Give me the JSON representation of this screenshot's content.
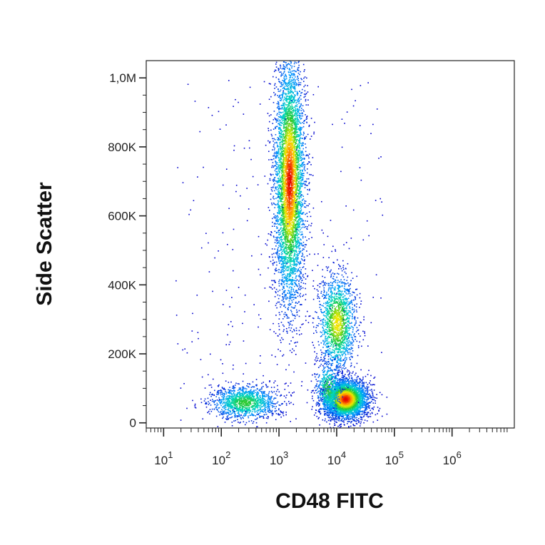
{
  "chart_data": {
    "type": "scatter",
    "title": "",
    "xlabel": "CD48 FITC",
    "ylabel": "Side Scatter",
    "x_scale": "log",
    "xlim": [
      5,
      12000000
    ],
    "ylim": [
      -15000,
      1050000
    ],
    "x_ticks": [
      {
        "value": 10,
        "base": "10",
        "exp": "1"
      },
      {
        "value": 100,
        "base": "10",
        "exp": "2"
      },
      {
        "value": 1000,
        "base": "10",
        "exp": "3"
      },
      {
        "value": 10000,
        "base": "10",
        "exp": "4"
      },
      {
        "value": 100000,
        "base": "10",
        "exp": "5"
      },
      {
        "value": 1000000,
        "base": "10",
        "exp": "6"
      }
    ],
    "y_ticks": [
      {
        "value": 0,
        "label": "0"
      },
      {
        "value": 200000,
        "label": "200K"
      },
      {
        "value": 400000,
        "label": "400K"
      },
      {
        "value": 600000,
        "label": "600K"
      },
      {
        "value": 800000,
        "label": "800K"
      },
      {
        "value": 1000000,
        "label": "1,0M"
      }
    ],
    "grid": false,
    "legend": "none",
    "color_scale": "density (blue → cyan → green → yellow → red)",
    "populations": [
      {
        "x_center": 1500,
        "y_center": 700000,
        "x_spread": 1.35,
        "y_spread": 180000,
        "points": 5200
      },
      {
        "x_center": 10000,
        "y_center": 290000,
        "x_spread": 1.45,
        "y_spread": 70000,
        "points": 1600
      },
      {
        "x_center": 14000,
        "y_center": 70000,
        "x_spread": 1.55,
        "y_spread": 28000,
        "points": 3500
      },
      {
        "x_center": 250,
        "y_center": 60000,
        "x_spread": 2.0,
        "y_spread": 25000,
        "points": 1300
      },
      {
        "x_center": 7000,
        "y_center": 100000,
        "x_spread": 1.3,
        "y_spread": 40000,
        "points": 500
      }
    ]
  }
}
